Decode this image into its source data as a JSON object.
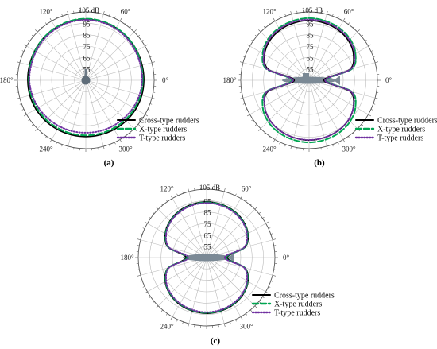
{
  "figure": {
    "legend_entries": [
      "Cross-type rudders",
      "X-type rudders",
      "T-type rudders"
    ],
    "series_colors": [
      "#000000",
      "#00a651",
      "#7030a0"
    ]
  },
  "chart_data": [
    {
      "type": "polar-line",
      "panel_label": "(a)",
      "angle_tick_labels": [
        "0°",
        "60°",
        "120°",
        "180°",
        "240°",
        "300°"
      ],
      "radial_tick_labels": [
        "55",
        "65",
        "75",
        "85",
        "95",
        "105 dB"
      ],
      "radial_range": [
        45,
        105
      ],
      "grid": true,
      "legend_position": "bottom-right",
      "silhouette": "submarine-bow-view",
      "angles_deg": [
        0,
        15,
        30,
        45,
        60,
        75,
        90,
        105,
        120,
        135,
        150,
        165,
        180,
        195,
        210,
        225,
        240,
        255,
        270,
        285,
        300,
        315,
        330,
        345
      ],
      "series": [
        {
          "name": "Cross-type rudders",
          "style": "solid",
          "values": [
            96,
            96.2,
            96.8,
            97.5,
            98,
            98.4,
            98.5,
            98.4,
            98,
            97.5,
            96.8,
            96.2,
            96,
            95.9,
            95.6,
            95.2,
            94.8,
            94.5,
            94.4,
            94.5,
            94.8,
            95.2,
            95.6,
            95.9
          ]
        },
        {
          "name": "X-type rudders",
          "style": "dashed",
          "values": [
            95,
            95.5,
            96.5,
            97.5,
            98.3,
            98.8,
            99,
            98.8,
            98.3,
            97.5,
            96.5,
            95.5,
            95,
            94.8,
            94.4,
            94,
            93.6,
            93.4,
            93.3,
            93.4,
            93.6,
            94,
            94.4,
            94.8
          ]
        },
        {
          "name": "T-type rudders",
          "style": "dotted",
          "values": [
            94.5,
            94.8,
            95.5,
            96.5,
            97.3,
            97.8,
            98,
            97.8,
            97.3,
            96.5,
            95.5,
            94.8,
            94.5,
            93.8,
            93,
            92.2,
            91.6,
            91.2,
            91,
            91.2,
            91.6,
            92.2,
            93,
            93.8
          ]
        }
      ]
    },
    {
      "type": "polar-line",
      "panel_label": "(b)",
      "angle_tick_labels": [
        "0°",
        "60°",
        "120°",
        "180°",
        "240°",
        "300°"
      ],
      "radial_tick_labels": [
        "55",
        "65",
        "75",
        "85",
        "95",
        "105 dB"
      ],
      "radial_range": [
        45,
        105
      ],
      "grid": true,
      "legend_position": "bottom-right",
      "silhouette": "submarine-side-view",
      "angles_deg": [
        0,
        15,
        30,
        45,
        60,
        75,
        90,
        105,
        120,
        135,
        150,
        165,
        180,
        195,
        210,
        225,
        240,
        255,
        270,
        285,
        300,
        315,
        330,
        345
      ],
      "series": [
        {
          "name": "Cross-type rudders",
          "style": "solid",
          "values": [
            58,
            82,
            90,
            94,
            96,
            97,
            97.5,
            97,
            96,
            94,
            90,
            82,
            58,
            82,
            90,
            94,
            96,
            97,
            97.5,
            97,
            96,
            94,
            90,
            82
          ]
        },
        {
          "name": "X-type rudders",
          "style": "dashed",
          "values": [
            60,
            84,
            92,
            96,
            98,
            99,
            99.5,
            99,
            98,
            96,
            92,
            84,
            60,
            84,
            92,
            96,
            98,
            99,
            99.5,
            99,
            98,
            96,
            92,
            84
          ]
        },
        {
          "name": "T-type rudders",
          "style": "dotted",
          "values": [
            59,
            83,
            91,
            95,
            97,
            98,
            98.3,
            98,
            97,
            95,
            91,
            83,
            59,
            83,
            90,
            94,
            96,
            97,
            97.3,
            97,
            96,
            94,
            90,
            83
          ]
        }
      ]
    },
    {
      "type": "polar-line",
      "panel_label": "(c)",
      "angle_tick_labels": [
        "0°",
        "60°",
        "120°",
        "180°",
        "240°",
        "300°"
      ],
      "radial_tick_labels": [
        "55",
        "65",
        "75",
        "85",
        "95",
        "105 dB"
      ],
      "radial_range": [
        45,
        105
      ],
      "grid": true,
      "legend_position": "bottom-right",
      "silhouette": "submarine-top-view",
      "angles_deg": [
        0,
        15,
        30,
        45,
        60,
        75,
        90,
        105,
        120,
        135,
        150,
        165,
        180,
        195,
        210,
        225,
        240,
        255,
        270,
        285,
        300,
        315,
        330,
        345
      ],
      "series": [
        {
          "name": "Cross-type rudders",
          "style": "solid",
          "values": [
            63,
            80,
            87,
            90.5,
            92.5,
            93.5,
            94,
            93.5,
            92.5,
            90.5,
            87,
            80,
            63,
            80,
            87,
            90.5,
            92.5,
            93.5,
            94,
            93.5,
            92.5,
            90.5,
            87,
            80
          ]
        },
        {
          "name": "X-type rudders",
          "style": "dashed",
          "values": [
            62,
            79.5,
            86.5,
            90,
            92,
            93,
            93.5,
            93,
            92,
            90,
            86.5,
            79.5,
            62,
            79.5,
            86.5,
            90,
            92,
            93,
            93.5,
            93,
            92,
            90,
            86.5,
            79.5
          ]
        },
        {
          "name": "T-type rudders",
          "style": "dotted",
          "values": [
            61,
            79,
            86,
            89.5,
            91.5,
            92.5,
            93,
            92.5,
            91.5,
            89.5,
            86,
            79,
            61,
            79,
            86,
            89.5,
            91.5,
            92.5,
            93,
            92.5,
            91.5,
            89.5,
            86,
            79
          ]
        }
      ]
    }
  ]
}
